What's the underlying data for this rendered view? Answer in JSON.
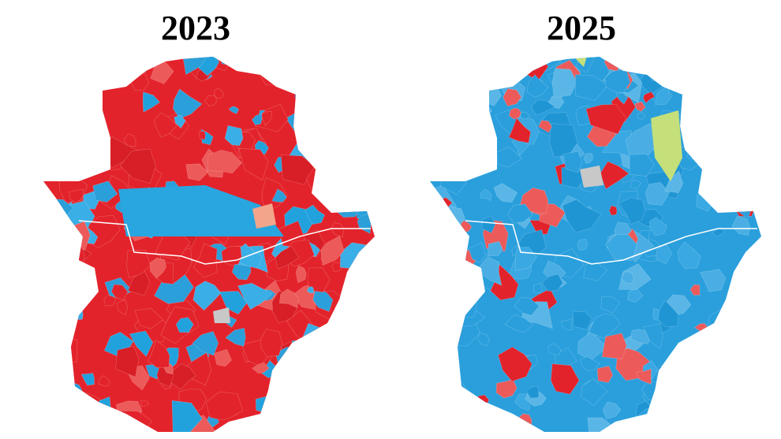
{
  "maps": [
    {
      "title": "2023"
    },
    {
      "title": "2025"
    }
  ]
}
